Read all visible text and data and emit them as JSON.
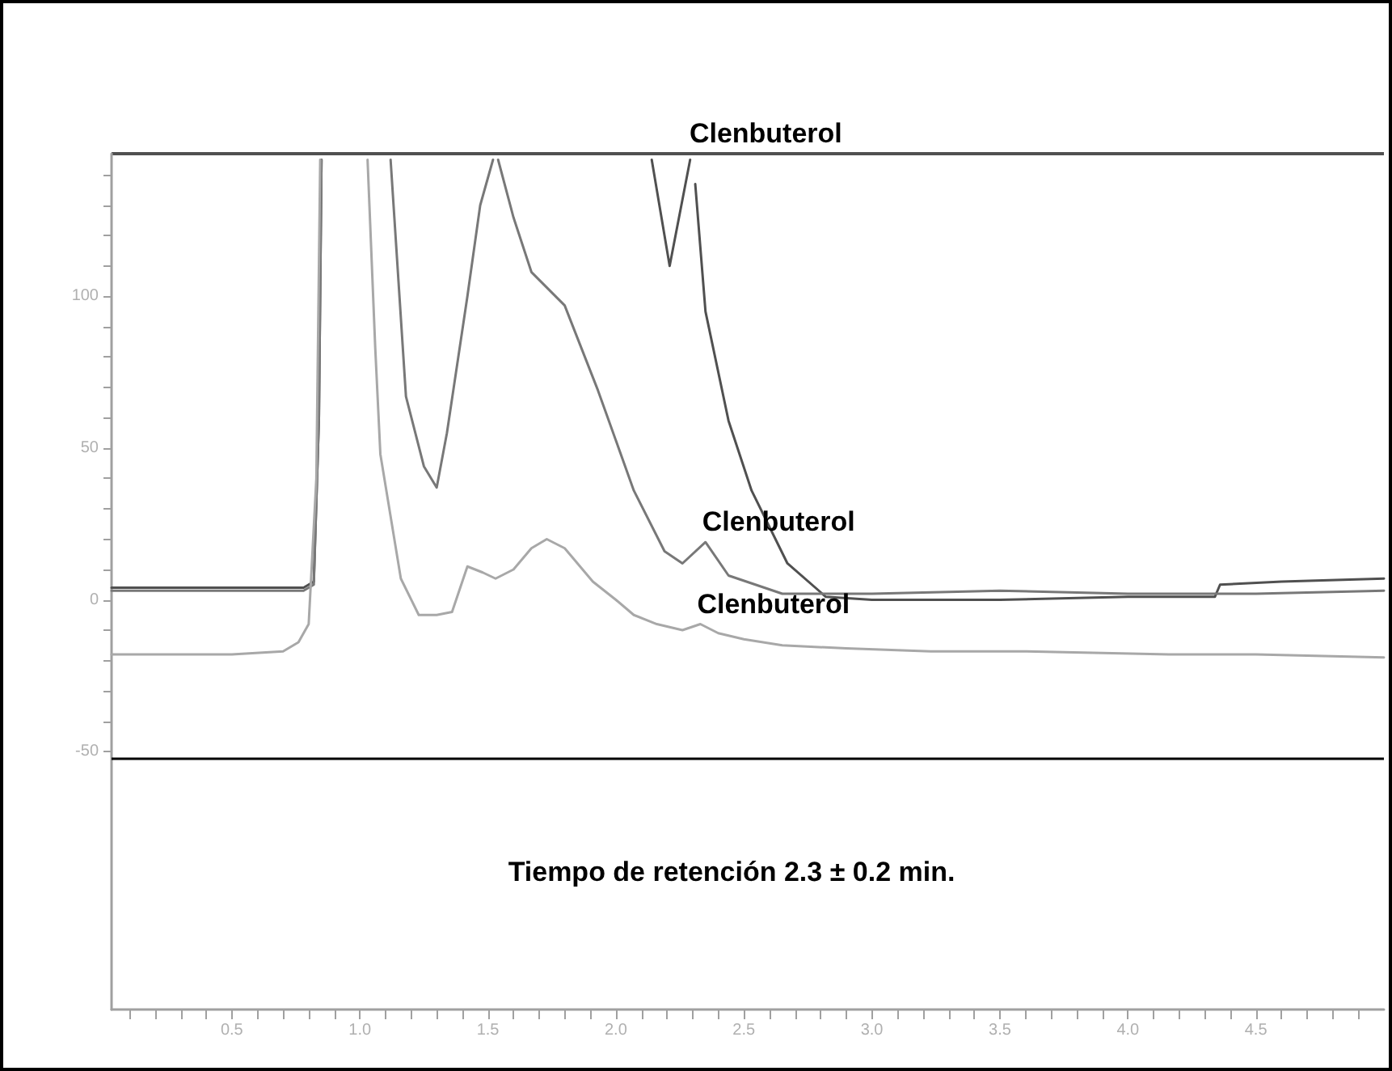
{
  "chart_data": {
    "type": "line",
    "series": [
      {
        "color": "#505050",
        "x": [
          0.03,
          0.5,
          0.78,
          0.82,
          0.84,
          0.85,
          1.5,
          2.14,
          2.21,
          2.29,
          2.3,
          2.31,
          2.35,
          2.44,
          2.53,
          2.67,
          2.82,
          3.0,
          3.5,
          4.0,
          4.34,
          4.36,
          4.6,
          5.0
        ],
        "values": [
          4,
          4,
          4,
          6,
          60,
          145,
          null,
          145,
          110,
          145,
          null,
          137,
          95,
          59,
          36,
          12,
          1,
          0,
          0,
          1,
          1,
          5,
          6,
          7
        ]
      },
      {
        "color": "#787878",
        "x": [
          0.03,
          0.5,
          0.78,
          0.82,
          0.84,
          0.85,
          1.0,
          1.12,
          1.18,
          1.25,
          1.3,
          1.34,
          1.42,
          1.47,
          1.52,
          1.53,
          1.54,
          1.6,
          1.67,
          1.8,
          1.93,
          2.07,
          2.19,
          2.26,
          2.35,
          2.44,
          2.65,
          3.0,
          3.5,
          4.0,
          4.5,
          5.0
        ],
        "values": [
          3,
          3,
          3,
          5,
          60,
          145,
          null,
          145,
          67,
          44,
          37,
          55,
          100,
          130,
          145,
          null,
          145,
          126,
          108,
          97,
          69,
          36,
          16,
          12,
          19,
          8,
          2,
          2,
          3,
          2,
          2,
          3
        ]
      },
      {
        "color": "#a8a8a8",
        "x": [
          0.03,
          0.5,
          0.7,
          0.76,
          0.8,
          0.83,
          0.845,
          0.9,
          1.03,
          1.06,
          1.08,
          1.16,
          1.23,
          1.3,
          1.36,
          1.42,
          1.48,
          1.53,
          1.6,
          1.67,
          1.73,
          1.8,
          1.91,
          2.0,
          2.07,
          2.16,
          2.26,
          2.33,
          2.4,
          2.5,
          2.65,
          2.9,
          3.23,
          3.6,
          4.16,
          4.5,
          5.0
        ],
        "values": [
          -18,
          -18,
          -17,
          -14,
          -8,
          40,
          145,
          null,
          145,
          83,
          48,
          7,
          -5,
          -5,
          -4,
          11,
          9,
          7,
          10,
          17,
          20,
          17,
          6,
          0,
          -5,
          -8,
          -10,
          -8,
          -11,
          -13,
          -15,
          -16,
          -17,
          -17,
          -18,
          -18,
          -19
        ]
      }
    ],
    "xlim": [
      0.03,
      5.0
    ],
    "xticks": [
      {
        "value": 0.1,
        "label": null
      },
      {
        "value": 0.2,
        "label": null
      },
      {
        "value": 0.3,
        "label": null
      },
      {
        "value": 0.4,
        "label": null
      },
      0.5,
      {
        "value": 0.6,
        "label": null
      },
      {
        "value": 0.7,
        "label": null
      },
      {
        "value": 0.8,
        "label": null
      },
      {
        "value": 0.9,
        "label": null
      },
      {
        "value": 1.0,
        "label": "1.0"
      },
      {
        "value": 1.1,
        "label": null
      },
      {
        "value": 1.2,
        "label": null
      },
      {
        "value": 1.3,
        "label": null
      },
      {
        "value": 1.4,
        "label": null
      },
      1.5,
      {
        "value": 1.6,
        "label": null
      },
      {
        "value": 1.7,
        "label": null
      },
      {
        "value": 1.8,
        "label": null
      },
      {
        "value": 1.9,
        "label": null
      },
      {
        "value": 2.0,
        "label": "2.0"
      },
      {
        "value": 2.1,
        "label": null
      },
      {
        "value": 2.2,
        "label": null
      },
      {
        "value": 2.3,
        "label": null
      },
      {
        "value": 2.4,
        "label": null
      },
      2.5,
      {
        "value": 2.6,
        "label": null
      },
      {
        "value": 2.7,
        "label": null
      },
      {
        "value": 2.8,
        "label": null
      },
      {
        "value": 2.9,
        "label": null
      },
      {
        "value": 3.0,
        "label": "3.0"
      },
      {
        "value": 3.1,
        "label": null
      },
      {
        "value": 3.2,
        "label": null
      },
      {
        "value": 3.3,
        "label": null
      },
      {
        "value": 3.4,
        "label": null
      },
      3.5,
      {
        "value": 3.6,
        "label": null
      },
      {
        "value": 3.7,
        "label": null
      },
      {
        "value": 3.8,
        "label": null
      },
      {
        "value": 3.9,
        "label": null
      },
      {
        "value": 4.0,
        "label": "4.0"
      },
      {
        "value": 4.1,
        "label": null
      },
      {
        "value": 4.2,
        "label": null
      },
      {
        "value": 4.3,
        "label": null
      },
      {
        "value": 4.4,
        "label": null
      },
      4.5,
      {
        "value": 4.6,
        "label": null
      },
      {
        "value": 4.7,
        "label": null
      },
      {
        "value": 4.8,
        "label": null
      },
      {
        "value": 4.9,
        "label": null
      }
    ],
    "ylim": [
      -135,
      147
    ],
    "yticks": [
      -50,
      {
        "value": -40,
        "label": null
      },
      {
        "value": -30,
        "label": null
      },
      {
        "value": -20,
        "label": null
      },
      {
        "value": -10,
        "label": null
      },
      0,
      {
        "value": 10,
        "label": null
      },
      {
        "value": 20,
        "label": null
      },
      {
        "value": 30,
        "label": null
      },
      {
        "value": 40,
        "label": null
      },
      50,
      {
        "value": 60,
        "label": null
      },
      {
        "value": 70,
        "label": null
      },
      {
        "value": 80,
        "label": null
      },
      {
        "value": 90,
        "label": null
      },
      100,
      {
        "value": 110,
        "label": null
      },
      {
        "value": 120,
        "label": null
      },
      {
        "value": 130,
        "label": null
      },
      {
        "value": 140,
        "label": null
      }
    ],
    "ref_lines": [
      {
        "axis": "y",
        "value": -52,
        "color": "#000000"
      }
    ],
    "annotations": [
      {
        "text": "Clenbuterol",
        "x": 2.3,
        "y": 147
      },
      {
        "text": "Clenbuterol",
        "x": 2.35,
        "y": 19
      },
      {
        "text": "Clenbuterol",
        "x": 2.33,
        "y": -8
      },
      "Tiempo de retención 2.3 ± 0.2 min."
    ],
    "grid": false,
    "marker": "none",
    "line_style": "solid"
  }
}
